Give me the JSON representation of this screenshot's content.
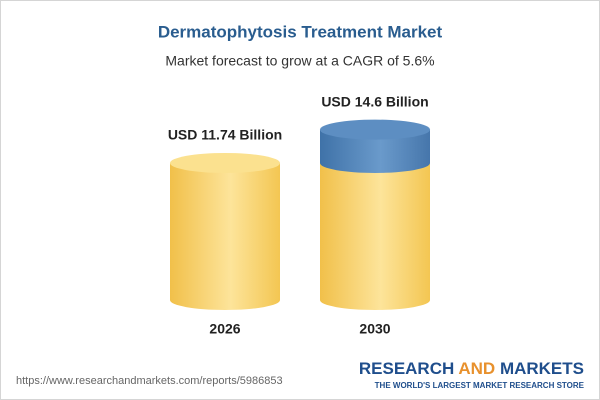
{
  "chart_data": {
    "type": "cylinder",
    "title": "Dermatophytosis Treatment Market",
    "subtitle": "Market forecast to grow at a CAGR of 5.6%",
    "categories": [
      "2026",
      "2030"
    ],
    "values": [
      11.74,
      14.6
    ],
    "value_labels": [
      "USD 11.74 Billion",
      "USD 14.6 Billion"
    ],
    "color": "#f5c94e",
    "growth_color": "#4f81b8"
  },
  "footer": {
    "url": "https://www.researchandmarkets.com/reports/5986853",
    "brand": [
      "RESEARCH",
      "AND",
      "MARKETS"
    ],
    "tagline": "THE WORLD'S LARGEST MARKET RESEARCH STORE"
  }
}
